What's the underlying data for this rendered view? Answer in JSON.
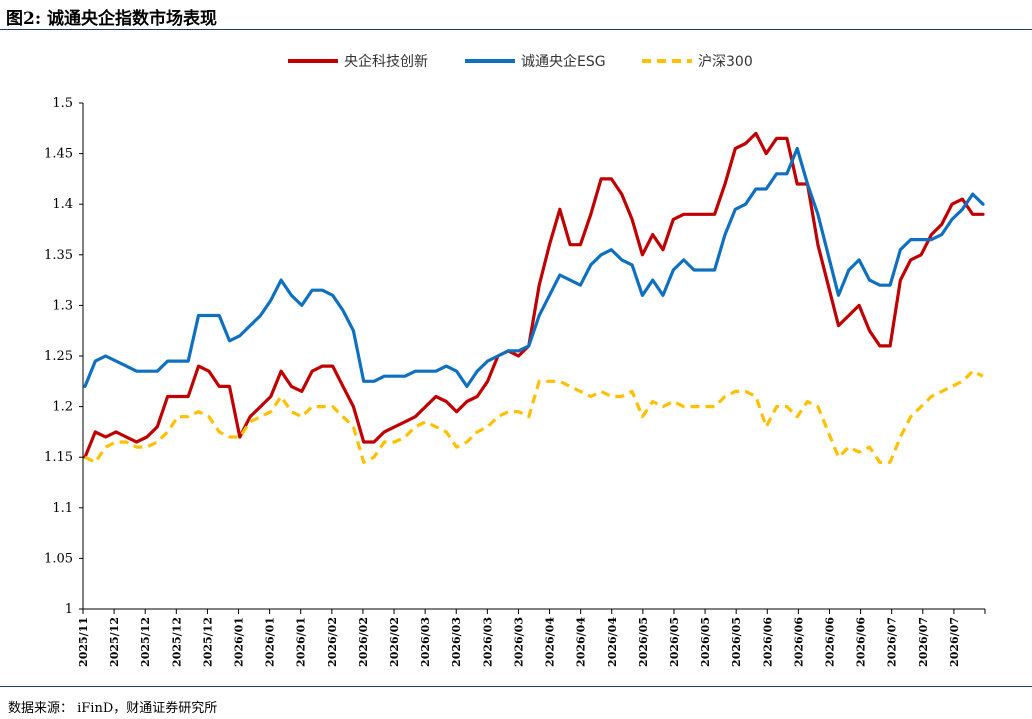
{
  "header": {
    "title": "图2: 诚通央企指数市场表现"
  },
  "footer": {
    "source": "数据来源：  iFinD，财通证券研究所"
  },
  "colors": {
    "s1": "#c00000",
    "s2": "#1070c0",
    "s3": "#ffc000",
    "rule": "#1f3b73"
  },
  "chart_data": {
    "type": "line",
    "title": "",
    "xlabel": "",
    "ylabel": "",
    "ylim": [
      1,
      1.5
    ],
    "yticks": [
      "1",
      "1.05",
      "1.1",
      "1.15",
      "1.2",
      "1.25",
      "1.3",
      "1.35",
      "1.4",
      "1.45",
      "1.5"
    ],
    "xticks": [
      "2025/11",
      "2025/12",
      "2025/12",
      "2025/12",
      "2025/12",
      "2026/01",
      "2026/01",
      "2026/01",
      "2026/02",
      "2026/02",
      "2026/02",
      "2026/03",
      "2026/03",
      "2026/03",
      "2026/03",
      "2026/04",
      "2026/04",
      "2026/04",
      "2026/05",
      "2026/05",
      "2026/05",
      "2026/05",
      "2026/06",
      "2026/06",
      "2026/06",
      "2026/06",
      "2026/07",
      "2026/07",
      "2026/07"
    ],
    "legend_position": "top-center",
    "grid": false,
    "series": [
      {
        "name": "央企科技创新",
        "style": "solid",
        "values": [
          1.15,
          1.175,
          1.17,
          1.175,
          1.17,
          1.165,
          1.17,
          1.18,
          1.21,
          1.21,
          1.21,
          1.24,
          1.235,
          1.22,
          1.22,
          1.17,
          1.19,
          1.2,
          1.21,
          1.235,
          1.22,
          1.215,
          1.235,
          1.24,
          1.24,
          1.22,
          1.2,
          1.165,
          1.165,
          1.175,
          1.18,
          1.185,
          1.19,
          1.2,
          1.21,
          1.205,
          1.195,
          1.205,
          1.21,
          1.225,
          1.25,
          1.255,
          1.25,
          1.26,
          1.32,
          1.36,
          1.395,
          1.36,
          1.36,
          1.39,
          1.425,
          1.425,
          1.41,
          1.385,
          1.35,
          1.37,
          1.355,
          1.385,
          1.39,
          1.39,
          1.39,
          1.39,
          1.42,
          1.455,
          1.46,
          1.47,
          1.45,
          1.465,
          1.465,
          1.42,
          1.42,
          1.36,
          1.32,
          1.28,
          1.29,
          1.3,
          1.275,
          1.26,
          1.26,
          1.325,
          1.345,
          1.35,
          1.37,
          1.38,
          1.4,
          1.405,
          1.39,
          1.39
        ]
      },
      {
        "name": "诚通央企ESG",
        "style": "solid",
        "values": [
          1.22,
          1.245,
          1.25,
          1.245,
          1.24,
          1.235,
          1.235,
          1.235,
          1.245,
          1.245,
          1.245,
          1.29,
          1.29,
          1.29,
          1.265,
          1.27,
          1.28,
          1.29,
          1.305,
          1.325,
          1.31,
          1.3,
          1.315,
          1.315,
          1.31,
          1.295,
          1.275,
          1.225,
          1.225,
          1.23,
          1.23,
          1.23,
          1.235,
          1.235,
          1.235,
          1.24,
          1.235,
          1.22,
          1.235,
          1.245,
          1.25,
          1.255,
          1.255,
          1.26,
          1.29,
          1.31,
          1.33,
          1.325,
          1.32,
          1.34,
          1.35,
          1.355,
          1.345,
          1.34,
          1.31,
          1.325,
          1.31,
          1.335,
          1.345,
          1.335,
          1.335,
          1.335,
          1.37,
          1.395,
          1.4,
          1.415,
          1.415,
          1.43,
          1.43,
          1.455,
          1.42,
          1.39,
          1.35,
          1.31,
          1.335,
          1.345,
          1.325,
          1.32,
          1.32,
          1.355,
          1.365,
          1.365,
          1.365,
          1.37,
          1.385,
          1.395,
          1.41,
          1.4
        ]
      },
      {
        "name": "沪深300",
        "style": "dashed",
        "values": [
          1.15,
          1.145,
          1.16,
          1.165,
          1.165,
          1.16,
          1.16,
          1.165,
          1.175,
          1.19,
          1.19,
          1.195,
          1.19,
          1.175,
          1.17,
          1.17,
          1.185,
          1.19,
          1.195,
          1.21,
          1.195,
          1.19,
          1.2,
          1.2,
          1.2,
          1.19,
          1.18,
          1.145,
          1.15,
          1.165,
          1.165,
          1.17,
          1.18,
          1.185,
          1.18,
          1.175,
          1.16,
          1.165,
          1.175,
          1.18,
          1.19,
          1.195,
          1.195,
          1.19,
          1.225,
          1.225,
          1.225,
          1.22,
          1.215,
          1.21,
          1.215,
          1.21,
          1.21,
          1.215,
          1.19,
          1.205,
          1.2,
          1.205,
          1.2,
          1.2,
          1.2,
          1.2,
          1.21,
          1.215,
          1.215,
          1.21,
          1.18,
          1.2,
          1.2,
          1.19,
          1.205,
          1.2,
          1.175,
          1.15,
          1.16,
          1.155,
          1.16,
          1.145,
          1.145,
          1.17,
          1.19,
          1.2,
          1.21,
          1.215,
          1.22,
          1.225,
          1.235,
          1.23
        ]
      }
    ]
  }
}
